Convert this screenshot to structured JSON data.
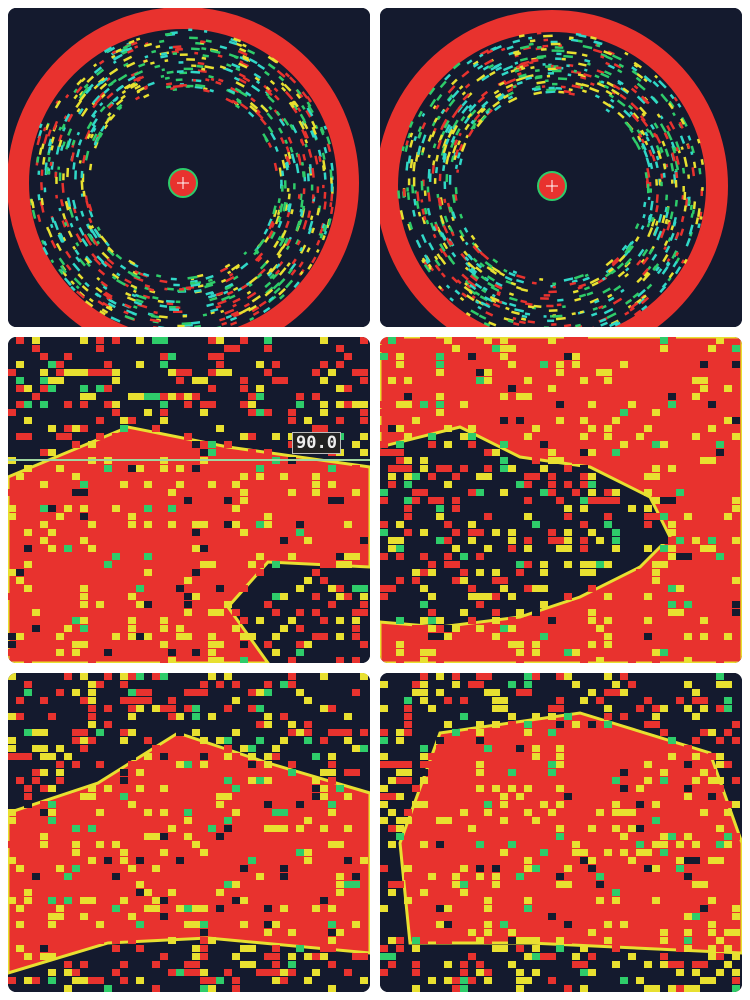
{
  "panels": [
    {
      "id": "p1",
      "kind": "ring"
    },
    {
      "id": "p2",
      "kind": "ring"
    },
    {
      "id": "p3",
      "kind": "blob"
    },
    {
      "id": "p4",
      "kind": "blob"
    },
    {
      "id": "p5",
      "kind": "blob"
    },
    {
      "id": "p6",
      "kind": "blob"
    }
  ],
  "depth_readout": "90.0",
  "colors": {
    "background": "#141a2e",
    "echo_strong": "#e8322e",
    "echo_medium": "#e8e030",
    "echo_weak": "#2ecc6a",
    "echo_faint": "#30d8c8"
  }
}
